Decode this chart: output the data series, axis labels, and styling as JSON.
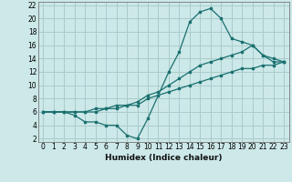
{
  "title": "",
  "xlabel": "Humidex (Indice chaleur)",
  "bg_color": "#cce8e8",
  "grid_color": "#aacccc",
  "line_color": "#1a7070",
  "xlim": [
    -0.5,
    23.5
  ],
  "ylim": [
    1.5,
    22.5
  ],
  "xticks": [
    0,
    1,
    2,
    3,
    4,
    5,
    6,
    7,
    8,
    9,
    10,
    11,
    12,
    13,
    14,
    15,
    16,
    17,
    18,
    19,
    20,
    21,
    22,
    23
  ],
  "yticks": [
    2,
    4,
    6,
    8,
    10,
    12,
    14,
    16,
    18,
    20,
    22
  ],
  "line1_x": [
    0,
    1,
    2,
    3,
    4,
    5,
    6,
    7,
    8,
    9,
    10,
    11,
    12,
    13,
    14,
    15,
    16,
    17,
    18,
    19,
    20,
    21,
    22,
    23
  ],
  "line1_y": [
    6,
    6,
    6,
    5.5,
    4.5,
    4.5,
    4,
    4,
    2.5,
    2,
    5,
    8.5,
    12,
    15,
    19.5,
    21,
    21.5,
    20,
    17,
    16.5,
    16,
    14.5,
    13.5,
    13.5
  ],
  "line2_x": [
    0,
    1,
    2,
    3,
    4,
    5,
    6,
    7,
    8,
    9,
    10,
    11,
    12,
    13,
    14,
    15,
    16,
    17,
    18,
    19,
    20,
    21,
    22,
    23
  ],
  "line2_y": [
    6,
    6,
    6,
    6,
    6,
    6.5,
    6.5,
    7,
    7,
    7.5,
    8.5,
    9,
    10,
    11,
    12,
    13,
    13.5,
    14,
    14.5,
    15,
    16,
    14.5,
    14,
    13.5
  ],
  "line3_x": [
    0,
    1,
    2,
    3,
    4,
    5,
    6,
    7,
    8,
    9,
    10,
    11,
    12,
    13,
    14,
    15,
    16,
    17,
    18,
    19,
    20,
    21,
    22,
    23
  ],
  "line3_y": [
    6,
    6,
    6,
    6,
    6,
    6,
    6.5,
    6.5,
    7,
    7,
    8,
    8.5,
    9,
    9.5,
    10,
    10.5,
    11,
    11.5,
    12,
    12.5,
    12.5,
    13,
    13,
    13.5
  ],
  "tick_fontsize": 5.5,
  "xlabel_fontsize": 6.5,
  "marker_size": 2.0,
  "line_width": 0.9
}
